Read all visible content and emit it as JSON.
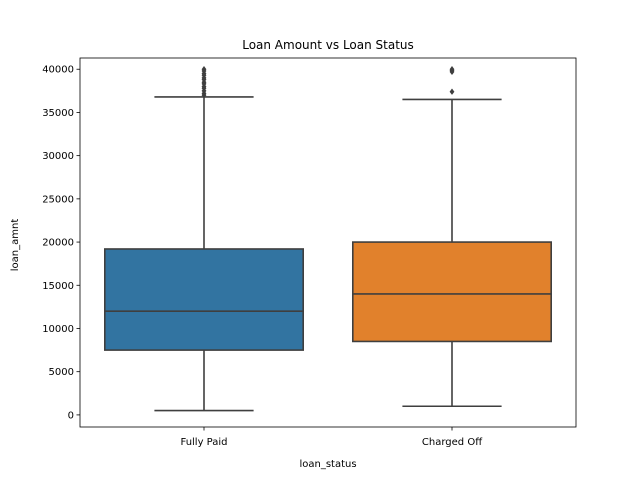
{
  "chart_data": {
    "type": "boxplot",
    "title": "Loan Amount vs Loan Status",
    "xlabel": "loan_status",
    "ylabel": "loan_amnt",
    "ylim": [
      -1400,
      41300
    ],
    "yticks": [
      0,
      5000,
      10000,
      15000,
      20000,
      25000,
      30000,
      35000,
      40000
    ],
    "categories": [
      "Fully Paid",
      "Charged Off"
    ],
    "grid": false,
    "legend": "none",
    "series": [
      {
        "category": "Fully Paid",
        "color": "#3274a1",
        "whisker_low": 500,
        "q1": 7500,
        "median": 12000,
        "q3": 19200,
        "whisker_high": 36800,
        "outliers": [
          37000,
          37200,
          37500,
          37800,
          38000,
          38300,
          38500,
          38800,
          39000,
          39300,
          39500,
          39800,
          40000
        ]
      },
      {
        "category": "Charged Off",
        "color": "#e1812c",
        "whisker_low": 1000,
        "q1": 8500,
        "median": 14000,
        "q3": 20000,
        "whisker_high": 36500,
        "outliers": [
          37400,
          39700,
          39850,
          40000
        ]
      }
    ]
  }
}
